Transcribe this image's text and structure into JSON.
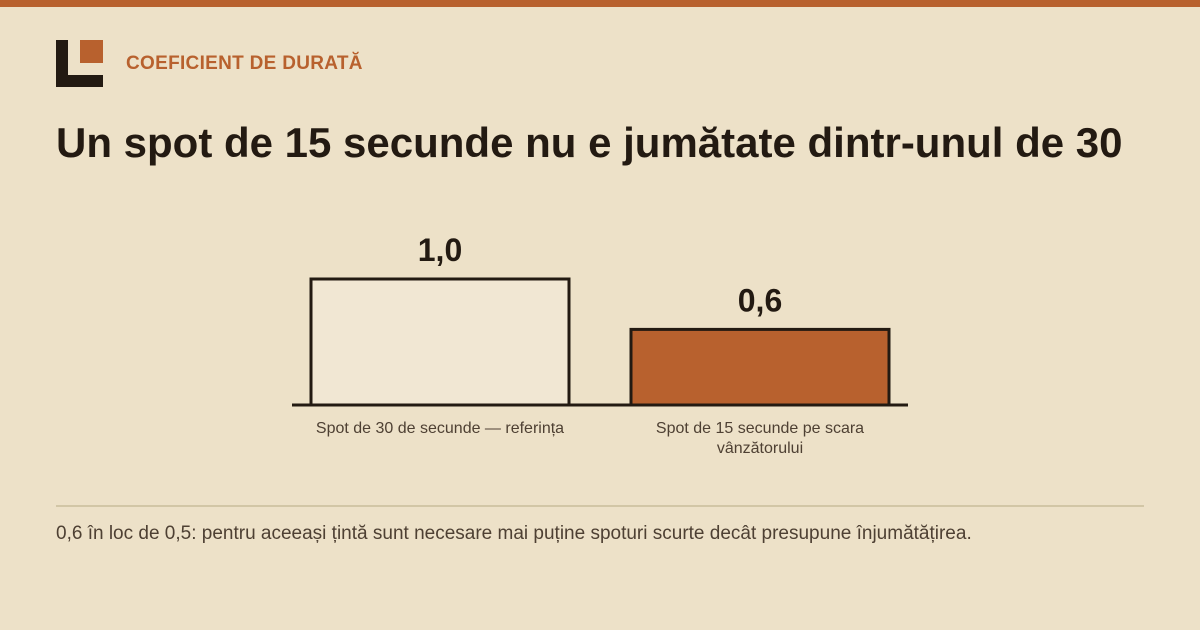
{
  "header": {
    "eyebrow": "COEFICIENT DE DURATĂ",
    "logo_icon": "brand-logo-icon"
  },
  "title": "Un spot de 15 secunde nu e jumătate dintr-unul de 30",
  "colors": {
    "accent": "#b8612e",
    "background": "#ede1c8",
    "reference_bar": "#f1e7d3",
    "ink": "#231a12"
  },
  "chart_data": {
    "type": "bar",
    "categories": [
      "Spot de 30 de secunde — referința",
      "Spot de 15 secunde pe scara vânzătorului"
    ],
    "values": [
      1.0,
      0.6
    ],
    "value_labels": [
      "1,0",
      "0,6"
    ],
    "ylim": [
      0,
      1
    ],
    "grid": false,
    "legend": "none"
  },
  "footnote": "0,6 în loc de 0,5: pentru aceeași țintă sunt necesare mai puține spoturi scurte decât presupune înjumătățirea."
}
